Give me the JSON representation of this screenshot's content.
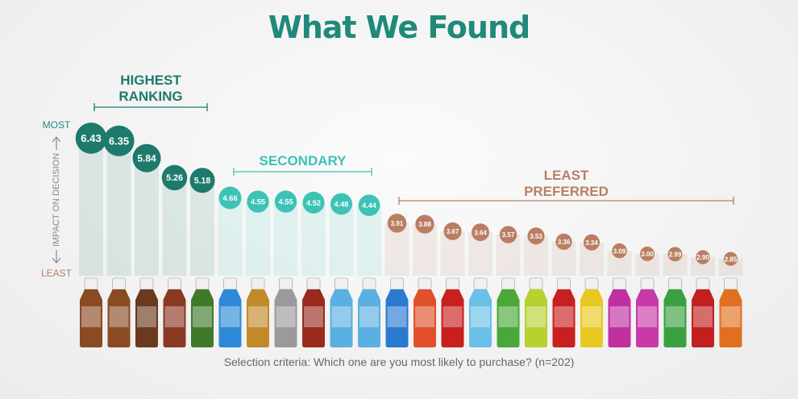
{
  "chart_data": {
    "type": "bubble",
    "title": "What We Found",
    "caption": "Selection criteria: Which one are you most likely to purchase? (n=202)",
    "ylabel": "IMPACT ON DECISION",
    "ylim": [
      2.4,
      6.8
    ],
    "yticks": [
      {
        "value": 6.8,
        "label": "MOST"
      },
      {
        "value": 2.4,
        "label": "LEAST"
      }
    ],
    "categories": [
      null,
      null,
      null,
      null,
      null,
      null,
      null,
      null,
      null,
      null,
      null,
      null,
      null,
      null,
      null,
      null,
      null,
      null,
      null,
      null,
      null,
      null,
      null,
      null
    ],
    "series": [
      {
        "name": "HIGHEST RANKING",
        "color": "#1e7a6c",
        "values": [
          6.43,
          6.35,
          5.84,
          5.26,
          5.18,
          null,
          null,
          null,
          null,
          null,
          null,
          null,
          null,
          null,
          null,
          null,
          null,
          null,
          null,
          null,
          null,
          null,
          null,
          null
        ],
        "value_labels": [
          "6.43",
          "6.35",
          "5.84",
          "5.26",
          "5.18",
          null,
          null,
          null,
          null,
          null,
          null,
          null,
          null,
          null,
          null,
          null,
          null,
          null,
          null,
          null,
          null,
          null,
          null,
          null
        ]
      },
      {
        "name": "SECONDARY",
        "color": "#3cc3b6",
        "values": [
          null,
          null,
          null,
          null,
          null,
          4.66,
          4.55,
          4.55,
          4.52,
          4.48,
          4.44,
          null,
          null,
          null,
          null,
          null,
          null,
          null,
          null,
          null,
          null,
          null,
          null,
          null
        ],
        "value_labels": [
          null,
          null,
          null,
          null,
          null,
          "4.66",
          "4.55",
          "4.55",
          "4.52",
          "4.48",
          "4.44",
          null,
          null,
          null,
          null,
          null,
          null,
          null,
          null,
          null,
          null,
          null,
          null,
          null
        ]
      },
      {
        "name": "LEAST PREFERRED",
        "color": "#b97e62",
        "values": [
          null,
          null,
          null,
          null,
          null,
          null,
          null,
          null,
          null,
          null,
          null,
          3.91,
          3.88,
          3.67,
          3.64,
          3.57,
          3.53,
          3.36,
          3.34,
          3.09,
          3.0,
          2.99,
          2.9,
          2.85
        ],
        "value_labels": [
          null,
          null,
          null,
          null,
          null,
          null,
          null,
          null,
          null,
          null,
          null,
          "3.91",
          "3.88",
          "3.67",
          "3.64",
          "3.57",
          "3.53",
          "3.36",
          "3.34",
          "3.09",
          "3.00",
          "2.99",
          "2.90",
          "2.85"
        ]
      }
    ]
  }
}
